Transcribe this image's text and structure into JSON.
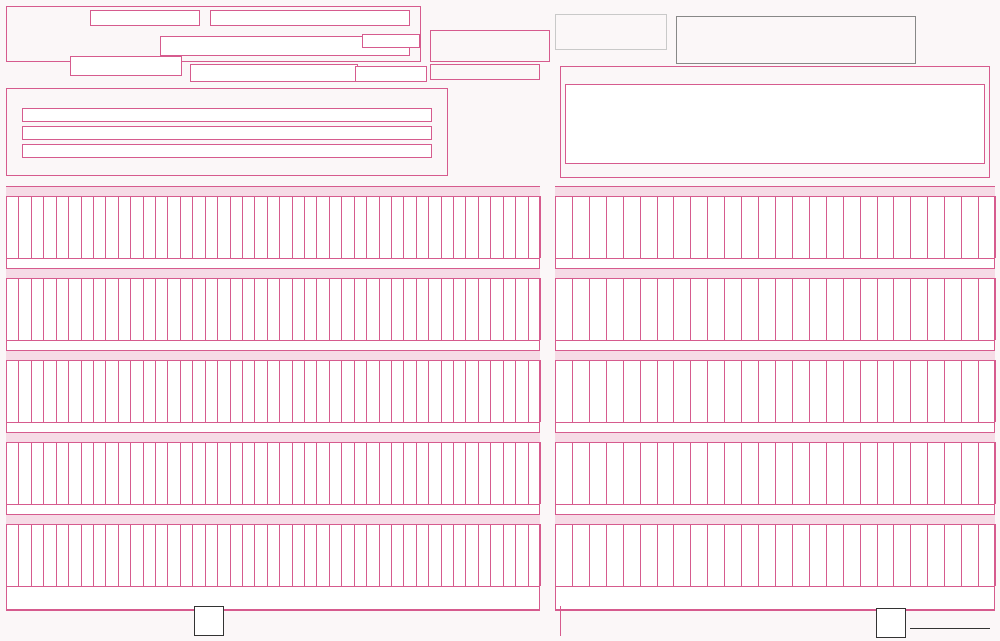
{
  "theme": {
    "accent": "#d65b8e",
    "band": "#f6dbe6",
    "paper": "#fbf7f8"
  },
  "header": {
    "title": "",
    "course_label": "",
    "member_name": ""
  },
  "footer": {
    "internet_label": "",
    "url": "",
    "phone_center": "",
    "fax_label": "",
    "fax_number": "",
    "form_code": ""
  },
  "order_grid": {
    "rows_per_band": 5,
    "left_cols": 43,
    "right_cols": 26
  }
}
